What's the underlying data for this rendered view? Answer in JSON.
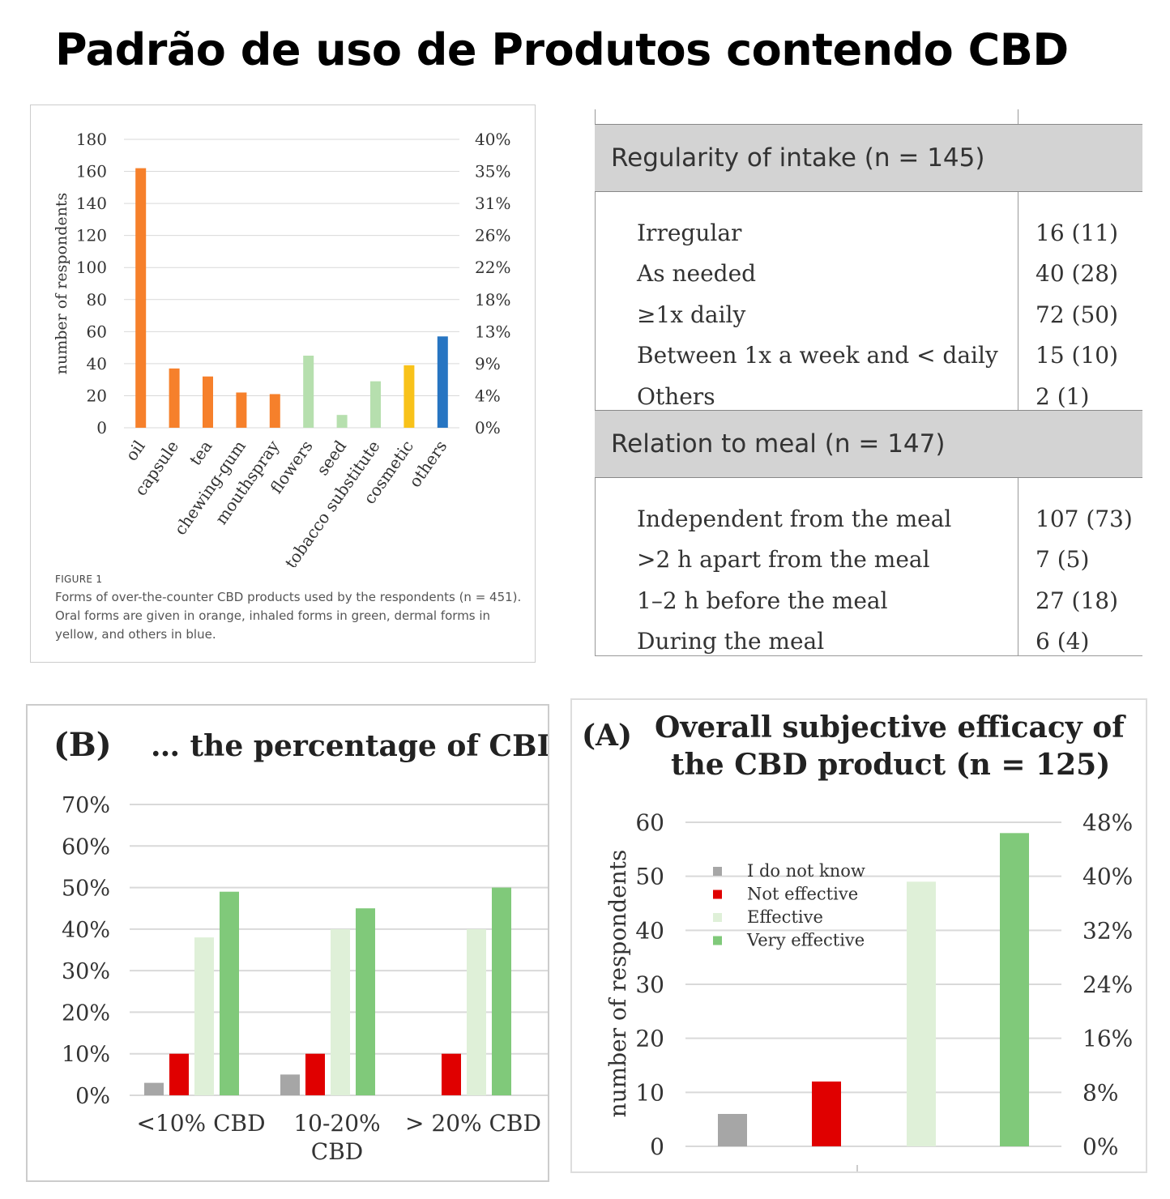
{
  "title": "Padrão de uso de Produtos contendo CBD",
  "figure1": {
    "caption_label": "FIGURE 1",
    "caption": "Forms of over-the-counter CBD products used by the respondents (n = 451). Oral forms are given in orange, inhaled forms in green, dermal forms in yellow, and others in blue."
  },
  "table": {
    "sections": [
      {
        "header": "Regularity of intake (n = 145)",
        "rows": [
          {
            "label": "Irregular",
            "value": "16 (11)"
          },
          {
            "label": "As needed",
            "value": "40 (28)"
          },
          {
            "label": "≥1x daily",
            "value": "72 (50)"
          },
          {
            "label": "Between 1x a week and < daily",
            "value": "15 (10)"
          },
          {
            "label": "Others",
            "value": "2 (1)"
          }
        ]
      },
      {
        "header": "Relation to meal (n = 147)",
        "rows": [
          {
            "label": "Independent from the meal",
            "value": "107 (73)"
          },
          {
            "label": ">2 h apart from the meal",
            "value": "7 (5)"
          },
          {
            "label": "1–2 h before the meal",
            "value": "27 (18)"
          },
          {
            "label": "During the meal",
            "value": "6 (4)"
          }
        ]
      }
    ]
  },
  "chart_data": [
    {
      "type": "bar",
      "title": "",
      "xlabel": "",
      "ylabel": "number of respondents",
      "ylim": [
        0,
        180
      ],
      "yticks": [
        "0",
        "20",
        "40",
        "60",
        "80",
        "100",
        "120",
        "140",
        "160",
        "180"
      ],
      "y2ticks": [
        "0%",
        "4%",
        "9%",
        "13%",
        "18%",
        "22%",
        "26%",
        "31%",
        "35%",
        "40%"
      ],
      "categories": [
        "oil",
        "capsule",
        "tea",
        "chewing-gum",
        "mouthspray",
        "flowers",
        "seed",
        "tobacco substitute",
        "cosmetic",
        "others"
      ],
      "values": [
        162,
        37,
        32,
        22,
        21,
        45,
        8,
        29,
        39,
        57
      ],
      "colors": [
        "#f6802b",
        "#f6802b",
        "#f6802b",
        "#f6802b",
        "#f6802b",
        "#b6dfae",
        "#b6dfae",
        "#b6dfae",
        "#f8c21a",
        "#2775c2"
      ],
      "grid": true
    },
    {
      "type": "bar",
      "panel_label": "(B)",
      "title": "… the percentage of CBD",
      "ylim": [
        0,
        70
      ],
      "yticks": [
        "0%",
        "10%",
        "20%",
        "30%",
        "40%",
        "50%",
        "60%",
        "70%"
      ],
      "categories": [
        "<10% CBD",
        "10-20% CBD",
        "> 20% CBD"
      ],
      "series": [
        {
          "values": [
            3,
            5,
            0
          ],
          "color": "#a6a6a6"
        },
        {
          "values": [
            10,
            10,
            10
          ],
          "color": "#e00000"
        },
        {
          "values": [
            38,
            40,
            40
          ],
          "color": "#dff0d8"
        },
        {
          "values": [
            49,
            45,
            50
          ],
          "color": "#80c97a"
        }
      ],
      "grid": true
    },
    {
      "type": "bar",
      "panel_label": "(A)",
      "title": "Overall subjective efficacy of the CBD product (n = 125)",
      "ylabel": "number of respondents",
      "ylim": [
        0,
        60
      ],
      "yticks": [
        "0",
        "10",
        "20",
        "30",
        "40",
        "50",
        "60"
      ],
      "y2ticks": [
        "0%",
        "8%",
        "16%",
        "24%",
        "32%",
        "40%",
        "48%"
      ],
      "categories": [
        "I do not know",
        "Not effective",
        "Effective",
        "Very effective"
      ],
      "series": [
        {
          "name": "I do not know",
          "value": 6,
          "color": "#a6a6a6"
        },
        {
          "name": "Not effective",
          "value": 12,
          "color": "#e00000"
        },
        {
          "name": "Effective",
          "value": 49,
          "color": "#dff0d8"
        },
        {
          "name": "Very effective",
          "value": 58,
          "color": "#80c97a"
        }
      ],
      "legend": "top-left",
      "grid": true
    }
  ]
}
